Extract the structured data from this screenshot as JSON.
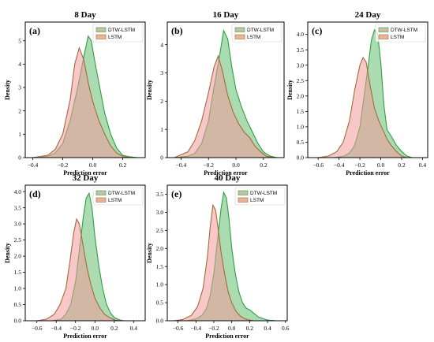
{
  "colors": {
    "dtw_fill": "#8fcf95",
    "dtw_line": "#2e9e44",
    "lstm_fill": "#f39a9a",
    "lstm_line": "#a36a3a",
    "overlap": "#d99a84",
    "legend_patch_dtw": "#c7c0a6",
    "legend_patch_lstm": "#e9b59a",
    "axis": "#000000"
  },
  "chart_data": [
    {
      "type": "area",
      "title": "8 Day",
      "panel_label": "(a)",
      "xlabel": "Prediction error",
      "ylabel": "Density",
      "xlim": [
        -0.45,
        0.35
      ],
      "ylim": [
        0,
        5.8
      ],
      "xticks": [
        -0.4,
        -0.2,
        0.0,
        0.2
      ],
      "xtick_labels": [
        "−0.4",
        "−0.2",
        "0.0",
        "0.2"
      ],
      "yticks": [
        0,
        1,
        2,
        3,
        4,
        5
      ],
      "ytick_labels": [
        "0",
        "1",
        "2",
        "3",
        "4",
        "5"
      ],
      "legend": "top-right",
      "series": [
        {
          "name": "DTW-LSTM",
          "x": [
            -0.4,
            -0.3,
            -0.25,
            -0.2,
            -0.15,
            -0.1,
            -0.06,
            -0.03,
            -0.01,
            0.02,
            0.05,
            0.08,
            0.12,
            0.16,
            0.2,
            0.25,
            0.3
          ],
          "values": [
            0,
            0.05,
            0.2,
            0.6,
            1.6,
            3.0,
            4.3,
            5.2,
            5.0,
            3.9,
            2.9,
            1.9,
            1.0,
            0.4,
            0.1,
            0.03,
            0
          ]
        },
        {
          "name": "LSTM",
          "x": [
            -0.4,
            -0.3,
            -0.25,
            -0.2,
            -0.15,
            -0.12,
            -0.09,
            -0.06,
            -0.03,
            0.0,
            0.04,
            0.08,
            0.12,
            0.16,
            0.2,
            0.25
          ],
          "values": [
            0,
            0.1,
            0.35,
            1.0,
            2.5,
            4.0,
            4.7,
            4.2,
            3.2,
            2.4,
            1.6,
            1.0,
            0.5,
            0.2,
            0.05,
            0
          ]
        }
      ]
    },
    {
      "type": "area",
      "title": "16 Day",
      "panel_label": "(b)",
      "xlabel": "Prediction error",
      "ylabel": "Density",
      "xlim": [
        -0.5,
        0.35
      ],
      "ylim": [
        0,
        4.8
      ],
      "xticks": [
        -0.4,
        -0.2,
        0.0,
        0.2
      ],
      "xtick_labels": [
        "−0.4",
        "−0.2",
        "0.0",
        "0.2"
      ],
      "yticks": [
        0,
        1,
        2,
        3,
        4
      ],
      "ytick_labels": [
        "0",
        "1",
        "2",
        "3",
        "4"
      ],
      "legend": "top-right",
      "series": [
        {
          "name": "DTW-LSTM",
          "x": [
            -0.45,
            -0.35,
            -0.3,
            -0.25,
            -0.2,
            -0.16,
            -0.12,
            -0.09,
            -0.06,
            -0.03,
            0.0,
            0.04,
            0.08,
            0.12,
            0.16,
            0.2,
            0.25,
            0.3
          ],
          "values": [
            0,
            0.05,
            0.15,
            0.5,
            1.3,
            2.5,
            3.6,
            4.5,
            4.2,
            3.2,
            2.4,
            1.8,
            1.3,
            0.9,
            0.5,
            0.2,
            0.05,
            0
          ]
        },
        {
          "name": "LSTM",
          "x": [
            -0.45,
            -0.35,
            -0.3,
            -0.25,
            -0.2,
            -0.16,
            -0.13,
            -0.1,
            -0.06,
            -0.02,
            0.02,
            0.06,
            0.1,
            0.14,
            0.18,
            0.22,
            0.28
          ],
          "values": [
            0,
            0.2,
            0.6,
            1.3,
            2.3,
            3.2,
            3.6,
            3.1,
            2.2,
            1.6,
            1.2,
            0.9,
            0.7,
            0.4,
            0.2,
            0.05,
            0
          ]
        }
      ]
    },
    {
      "type": "area",
      "title": "24 Day",
      "panel_label": "(c)",
      "xlabel": "Prediction error",
      "ylabel": "Density",
      "xlim": [
        -0.7,
        0.45
      ],
      "ylim": [
        0,
        4.4
      ],
      "xticks": [
        -0.6,
        -0.4,
        -0.2,
        0.0,
        0.2,
        0.4
      ],
      "xtick_labels": [
        "−0.6",
        "−0.4",
        "−0.2",
        "0.0",
        "0.2",
        "0.4"
      ],
      "yticks": [
        0.0,
        0.5,
        1.0,
        1.5,
        2.0,
        2.5,
        3.0,
        3.5,
        4.0
      ],
      "ytick_labels": [
        "0.0",
        "0.5",
        "1.0",
        "1.5",
        "2.0",
        "2.5",
        "3.0",
        "3.5",
        "4.0"
      ],
      "legend": "top-right",
      "series": [
        {
          "name": "DTW-LSTM",
          "x": [
            -0.45,
            -0.35,
            -0.3,
            -0.25,
            -0.2,
            -0.16,
            -0.12,
            -0.09,
            -0.06,
            -0.03,
            0.0,
            0.03,
            0.06,
            0.1,
            0.15,
            0.2,
            0.25,
            0.3
          ],
          "values": [
            0,
            0.05,
            0.15,
            0.4,
            1.0,
            2.0,
            3.0,
            3.8,
            4.15,
            4.0,
            3.1,
            1.7,
            0.9,
            0.7,
            0.4,
            0.2,
            0.05,
            0
          ]
        },
        {
          "name": "LSTM",
          "x": [
            -0.6,
            -0.5,
            -0.42,
            -0.36,
            -0.3,
            -0.25,
            -0.2,
            -0.17,
            -0.14,
            -0.1,
            -0.06,
            -0.02,
            0.02,
            0.06,
            0.1,
            0.15,
            0.2,
            0.25
          ],
          "values": [
            0,
            0.05,
            0.2,
            0.5,
            1.2,
            2.2,
            3.0,
            3.25,
            3.1,
            2.3,
            1.6,
            1.2,
            0.9,
            0.6,
            0.4,
            0.2,
            0.05,
            0
          ]
        }
      ]
    },
    {
      "type": "area",
      "title": "32 Day",
      "panel_label": "(d)",
      "xlabel": "Prediction error",
      "ylabel": "Density",
      "xlim": [
        -0.72,
        0.52
      ],
      "ylim": [
        0,
        4.2
      ],
      "xticks": [
        -0.6,
        -0.4,
        -0.2,
        0.0,
        0.2,
        0.4
      ],
      "xtick_labels": [
        "−0.6",
        "−0.4",
        "−0.2",
        "0.0",
        "0.2",
        "0.4"
      ],
      "yticks": [
        0.0,
        0.5,
        1.0,
        1.5,
        2.0,
        2.5,
        3.0,
        3.5,
        4.0
      ],
      "ytick_labels": [
        "0.0",
        "0.5",
        "1.0",
        "1.5",
        "2.0",
        "2.5",
        "3.0",
        "3.5",
        "4.0"
      ],
      "legend": "top-right",
      "series": [
        {
          "name": "DTW-LSTM",
          "x": [
            -0.45,
            -0.35,
            -0.3,
            -0.25,
            -0.2,
            -0.16,
            -0.12,
            -0.09,
            -0.06,
            -0.03,
            0.0,
            0.04,
            0.08,
            0.12,
            0.16,
            0.2,
            0.25,
            0.3
          ],
          "values": [
            0,
            0.05,
            0.2,
            0.5,
            1.2,
            2.2,
            3.2,
            3.8,
            3.95,
            3.5,
            2.6,
            1.7,
            1.0,
            0.5,
            0.25,
            0.1,
            0.03,
            0
          ]
        },
        {
          "name": "LSTM",
          "x": [
            -0.6,
            -0.5,
            -0.42,
            -0.36,
            -0.3,
            -0.26,
            -0.22,
            -0.19,
            -0.16,
            -0.12,
            -0.08,
            -0.04,
            0.0,
            0.05,
            0.1,
            0.15,
            0.2,
            0.25
          ],
          "values": [
            0,
            0.05,
            0.2,
            0.5,
            1.0,
            1.8,
            2.7,
            3.15,
            3.0,
            2.3,
            1.6,
            1.1,
            0.7,
            0.4,
            0.2,
            0.1,
            0.03,
            0
          ]
        }
      ]
    },
    {
      "type": "area",
      "title": "40 Day",
      "panel_label": "(e)",
      "xlabel": "Prediction error",
      "ylabel": "Density",
      "xlim": [
        -0.72,
        0.62
      ],
      "ylim": [
        0,
        3.75
      ],
      "xticks": [
        -0.6,
        -0.4,
        -0.2,
        0.0,
        0.2,
        0.4,
        0.6
      ],
      "xtick_labels": [
        "−0.6",
        "−0.4",
        "−0.2",
        "0.0",
        "0.2",
        "0.4",
        "0.6"
      ],
      "yticks": [
        0.0,
        0.5,
        1.0,
        1.5,
        2.0,
        2.5,
        3.0,
        3.5
      ],
      "ytick_labels": [
        "0.0",
        "0.5",
        "1.0",
        "1.5",
        "2.0",
        "2.5",
        "3.0",
        "3.5"
      ],
      "legend": "top-right",
      "series": [
        {
          "name": "DTW-LSTM",
          "x": [
            -0.5,
            -0.4,
            -0.33,
            -0.28,
            -0.24,
            -0.2,
            -0.16,
            -0.12,
            -0.09,
            -0.06,
            -0.03,
            0.0,
            0.04,
            0.08,
            0.12,
            0.16,
            0.2,
            0.25,
            0.3,
            0.4,
            0.5
          ],
          "values": [
            0,
            0.05,
            0.15,
            0.35,
            0.7,
            1.3,
            2.2,
            3.1,
            3.55,
            3.4,
            2.8,
            2.0,
            1.3,
            0.8,
            0.5,
            0.35,
            0.3,
            0.2,
            0.1,
            0.02,
            0
          ]
        },
        {
          "name": "LSTM",
          "x": [
            -0.65,
            -0.55,
            -0.45,
            -0.38,
            -0.32,
            -0.27,
            -0.24,
            -0.21,
            -0.18,
            -0.15,
            -0.12,
            -0.08,
            -0.04,
            0.0,
            0.05,
            0.1,
            0.15,
            0.2,
            0.25
          ],
          "values": [
            0,
            0.03,
            0.15,
            0.4,
            0.9,
            1.8,
            2.6,
            3.2,
            3.05,
            2.5,
            1.9,
            1.3,
            0.8,
            0.5,
            0.25,
            0.12,
            0.05,
            0.02,
            0
          ]
        }
      ]
    }
  ]
}
